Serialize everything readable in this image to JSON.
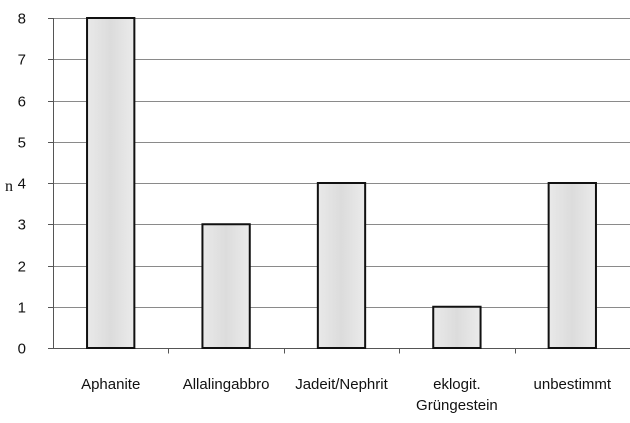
{
  "chart_data": {
    "type": "bar",
    "ylabel": "n",
    "ylim": [
      0,
      8
    ],
    "yticks": [
      "0",
      "1",
      "2",
      "3",
      "4",
      "5",
      "6",
      "7",
      "8"
    ],
    "categories": [
      [
        "Aphanite"
      ],
      [
        "Allalingabbro"
      ],
      [
        "Jadeit/Nephrit"
      ],
      [
        "eklogit.",
        "Grüngestein"
      ],
      [
        "unbestimmt"
      ]
    ],
    "values": [
      8,
      3,
      4,
      1,
      4
    ],
    "grid": "horizontal",
    "legend": "none",
    "colors": {
      "bar_fill": "#e6e6e6",
      "bar_stroke": "#111111",
      "grid": "#8a8a8a"
    }
  }
}
